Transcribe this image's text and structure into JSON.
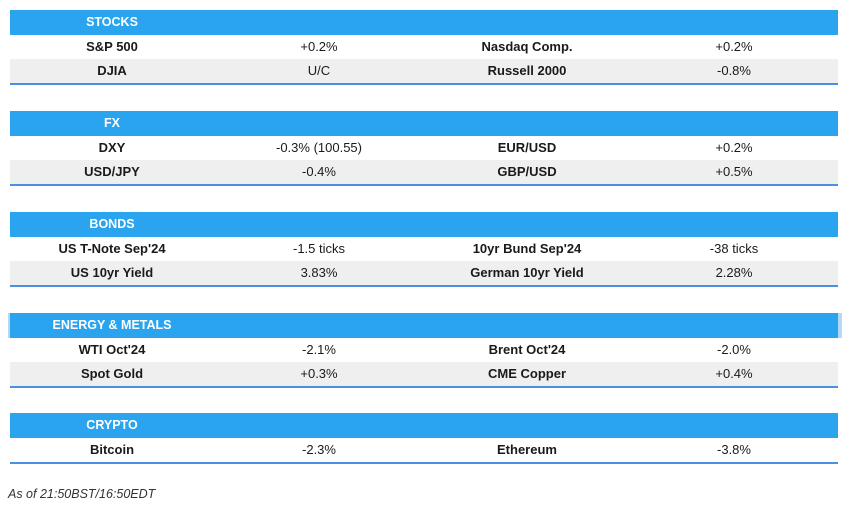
{
  "sections": [
    {
      "title": "STOCKS",
      "rows": [
        [
          "S&P 500",
          "+0.2%",
          "Nasdaq Comp.",
          "+0.2%"
        ],
        [
          "DJIA",
          "U/C",
          "Russell 2000",
          "-0.8%"
        ]
      ]
    },
    {
      "title": "FX",
      "rows": [
        [
          "DXY",
          "-0.3% (100.55)",
          "EUR/USD",
          "+0.2%"
        ],
        [
          "USD/JPY",
          "-0.4%",
          "GBP/USD",
          "+0.5%"
        ]
      ]
    },
    {
      "title": "BONDS",
      "rows": [
        [
          "US T-Note Sep'24",
          "-1.5 ticks",
          "10yr Bund Sep'24",
          "-38 ticks"
        ],
        [
          "US 10yr Yield",
          "3.83%",
          "German 10yr Yield",
          "2.28%"
        ]
      ]
    },
    {
      "title": "ENERGY & METALS",
      "rows": [
        [
          "WTI Oct'24",
          "-2.1%",
          "Brent Oct'24",
          "-2.0%"
        ],
        [
          "Spot Gold",
          "+0.3%",
          "CME Copper",
          "+0.4%"
        ]
      ]
    },
    {
      "title": "CRYPTO",
      "rows": [
        [
          "Bitcoin",
          "-2.3%",
          "Ethereum",
          "-3.8%"
        ]
      ]
    }
  ],
  "footer": "As of 21:50BST/16:50EDT",
  "colors": {
    "header": "#2aa4ee",
    "alt_row": "#efefef",
    "rule": "#4a8fe0"
  }
}
